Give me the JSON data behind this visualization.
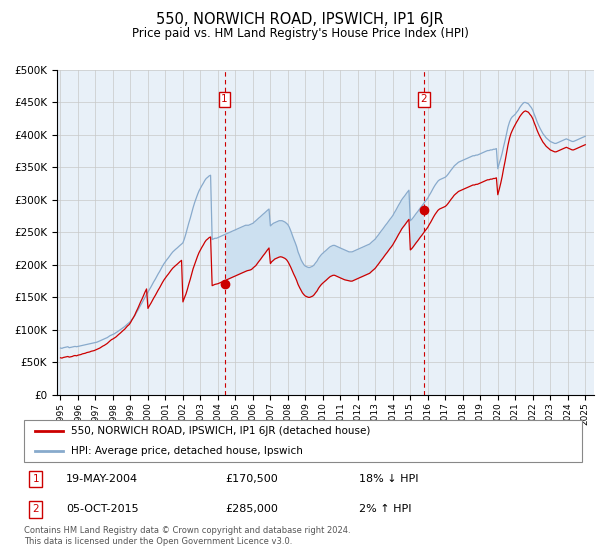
{
  "title": "550, NORWICH ROAD, IPSWICH, IP1 6JR",
  "subtitle": "Price paid vs. HM Land Registry's House Price Index (HPI)",
  "legend_line1": "550, NORWICH ROAD, IPSWICH, IP1 6JR (detached house)",
  "legend_line2": "HPI: Average price, detached house, Ipswich",
  "sale1_date": "19-MAY-2004",
  "sale1_price": "£170,500",
  "sale1_hpi": "18% ↓ HPI",
  "sale2_date": "05-OCT-2015",
  "sale2_price": "£285,000",
  "sale2_hpi": "2% ↑ HPI",
  "footer": "Contains HM Land Registry data © Crown copyright and database right 2024.\nThis data is licensed under the Open Government Licence v3.0.",
  "sale1_x": 2004.38,
  "sale1_y": 170500,
  "sale2_x": 2015.76,
  "sale2_y": 285000,
  "ylim": [
    0,
    500000
  ],
  "xlim": [
    1994.8,
    2025.5
  ],
  "red_color": "#cc0000",
  "blue_color": "#88aacc",
  "fill_color": "#cce0f0",
  "bg_color": "#e8f0f8",
  "hpi_data_x": [
    1995.0,
    1995.08,
    1995.17,
    1995.25,
    1995.33,
    1995.42,
    1995.5,
    1995.58,
    1995.67,
    1995.75,
    1995.83,
    1995.92,
    1996.0,
    1996.08,
    1996.17,
    1996.25,
    1996.33,
    1996.42,
    1996.5,
    1996.58,
    1996.67,
    1996.75,
    1996.83,
    1996.92,
    1997.0,
    1997.08,
    1997.17,
    1997.25,
    1997.33,
    1997.42,
    1997.5,
    1997.58,
    1997.67,
    1997.75,
    1997.83,
    1997.92,
    1998.0,
    1998.08,
    1998.17,
    1998.25,
    1998.33,
    1998.42,
    1998.5,
    1998.58,
    1998.67,
    1998.75,
    1998.83,
    1998.92,
    1999.0,
    1999.08,
    1999.17,
    1999.25,
    1999.33,
    1999.42,
    1999.5,
    1999.58,
    1999.67,
    1999.75,
    1999.83,
    1999.92,
    2000.0,
    2000.08,
    2000.17,
    2000.25,
    2000.33,
    2000.42,
    2000.5,
    2000.58,
    2000.67,
    2000.75,
    2000.83,
    2000.92,
    2001.0,
    2001.08,
    2001.17,
    2001.25,
    2001.33,
    2001.42,
    2001.5,
    2001.58,
    2001.67,
    2001.75,
    2001.83,
    2001.92,
    2002.0,
    2002.08,
    2002.17,
    2002.25,
    2002.33,
    2002.42,
    2002.5,
    2002.58,
    2002.67,
    2002.75,
    2002.83,
    2002.92,
    2003.0,
    2003.08,
    2003.17,
    2003.25,
    2003.33,
    2003.42,
    2003.5,
    2003.58,
    2003.67,
    2003.75,
    2003.83,
    2003.92,
    2004.0,
    2004.08,
    2004.17,
    2004.25,
    2004.33,
    2004.42,
    2004.5,
    2004.58,
    2004.67,
    2004.75,
    2004.83,
    2004.92,
    2005.0,
    2005.08,
    2005.17,
    2005.25,
    2005.33,
    2005.42,
    2005.5,
    2005.58,
    2005.67,
    2005.75,
    2005.83,
    2005.92,
    2006.0,
    2006.08,
    2006.17,
    2006.25,
    2006.33,
    2006.42,
    2006.5,
    2006.58,
    2006.67,
    2006.75,
    2006.83,
    2006.92,
    2007.0,
    2007.08,
    2007.17,
    2007.25,
    2007.33,
    2007.42,
    2007.5,
    2007.58,
    2007.67,
    2007.75,
    2007.83,
    2007.92,
    2008.0,
    2008.08,
    2008.17,
    2008.25,
    2008.33,
    2008.42,
    2008.5,
    2008.58,
    2008.67,
    2008.75,
    2008.83,
    2008.92,
    2009.0,
    2009.08,
    2009.17,
    2009.25,
    2009.33,
    2009.42,
    2009.5,
    2009.58,
    2009.67,
    2009.75,
    2009.83,
    2009.92,
    2010.0,
    2010.08,
    2010.17,
    2010.25,
    2010.33,
    2010.42,
    2010.5,
    2010.58,
    2010.67,
    2010.75,
    2010.83,
    2010.92,
    2011.0,
    2011.08,
    2011.17,
    2011.25,
    2011.33,
    2011.42,
    2011.5,
    2011.58,
    2011.67,
    2011.75,
    2011.83,
    2011.92,
    2012.0,
    2012.08,
    2012.17,
    2012.25,
    2012.33,
    2012.42,
    2012.5,
    2012.58,
    2012.67,
    2012.75,
    2012.83,
    2012.92,
    2013.0,
    2013.08,
    2013.17,
    2013.25,
    2013.33,
    2013.42,
    2013.5,
    2013.58,
    2013.67,
    2013.75,
    2013.83,
    2013.92,
    2014.0,
    2014.08,
    2014.17,
    2014.25,
    2014.33,
    2014.42,
    2014.5,
    2014.58,
    2014.67,
    2014.75,
    2014.83,
    2014.92,
    2015.0,
    2015.08,
    2015.17,
    2015.25,
    2015.33,
    2015.42,
    2015.5,
    2015.58,
    2015.67,
    2015.75,
    2015.83,
    2015.92,
    2016.0,
    2016.08,
    2016.17,
    2016.25,
    2016.33,
    2016.42,
    2016.5,
    2016.58,
    2016.67,
    2016.75,
    2016.83,
    2016.92,
    2017.0,
    2017.08,
    2017.17,
    2017.25,
    2017.33,
    2017.42,
    2017.5,
    2017.58,
    2017.67,
    2017.75,
    2017.83,
    2017.92,
    2018.0,
    2018.08,
    2018.17,
    2018.25,
    2018.33,
    2018.42,
    2018.5,
    2018.58,
    2018.67,
    2018.75,
    2018.83,
    2018.92,
    2019.0,
    2019.08,
    2019.17,
    2019.25,
    2019.33,
    2019.42,
    2019.5,
    2019.58,
    2019.67,
    2019.75,
    2019.83,
    2019.92,
    2020.0,
    2020.08,
    2020.17,
    2020.25,
    2020.33,
    2020.42,
    2020.5,
    2020.58,
    2020.67,
    2020.75,
    2020.83,
    2020.92,
    2021.0,
    2021.08,
    2021.17,
    2021.25,
    2021.33,
    2021.42,
    2021.5,
    2021.58,
    2021.67,
    2021.75,
    2021.83,
    2021.92,
    2022.0,
    2022.08,
    2022.17,
    2022.25,
    2022.33,
    2022.42,
    2022.5,
    2022.58,
    2022.67,
    2022.75,
    2022.83,
    2022.92,
    2023.0,
    2023.08,
    2023.17,
    2023.25,
    2023.33,
    2023.42,
    2023.5,
    2023.58,
    2023.67,
    2023.75,
    2023.83,
    2023.92,
    2024.0,
    2024.08,
    2024.17,
    2024.25,
    2024.33,
    2024.42,
    2024.5,
    2024.58,
    2024.67,
    2024.75,
    2024.83,
    2024.92,
    2025.0
  ],
  "hpi_data_y": [
    72000,
    71500,
    72500,
    73000,
    73500,
    74000,
    72500,
    73000,
    73500,
    74000,
    74500,
    74000,
    74500,
    75000,
    75500,
    76000,
    76500,
    77000,
    77500,
    78000,
    78500,
    79000,
    79500,
    80000,
    80500,
    81000,
    82000,
    83000,
    84000,
    85000,
    86000,
    87000,
    88000,
    89500,
    91000,
    92000,
    93000,
    94000,
    95500,
    97000,
    98500,
    100000,
    101500,
    103000,
    105000,
    107000,
    109000,
    111000,
    113000,
    116000,
    119000,
    122000,
    126000,
    130000,
    134000,
    138000,
    142000,
    146000,
    150000,
    155000,
    158000,
    162000,
    166000,
    170000,
    174000,
    178000,
    182000,
    186000,
    190000,
    194000,
    198000,
    202000,
    205000,
    208000,
    211000,
    214000,
    217000,
    220000,
    222000,
    224000,
    226000,
    228000,
    230000,
    232000,
    234000,
    240000,
    248000,
    256000,
    264000,
    272000,
    280000,
    288000,
    296000,
    302000,
    308000,
    314000,
    318000,
    322000,
    326000,
    330000,
    333000,
    335000,
    337000,
    338000,
    239000,
    240000,
    241000,
    241000,
    242000,
    243000,
    244000,
    245000,
    246000,
    247000,
    248000,
    249000,
    250000,
    251000,
    252000,
    253000,
    254000,
    255000,
    256000,
    257000,
    258000,
    259000,
    260000,
    261000,
    261000,
    261000,
    262000,
    263000,
    264000,
    266000,
    268000,
    270000,
    272000,
    274000,
    276000,
    278000,
    280000,
    282000,
    284000,
    286000,
    260000,
    262000,
    264000,
    265000,
    266000,
    267000,
    268000,
    268000,
    268000,
    267000,
    266000,
    264000,
    262000,
    258000,
    252000,
    246000,
    240000,
    234000,
    228000,
    220000,
    214000,
    208000,
    204000,
    200000,
    198000,
    197000,
    196000,
    196000,
    197000,
    198000,
    200000,
    203000,
    206000,
    210000,
    213000,
    216000,
    218000,
    220000,
    222000,
    224000,
    226000,
    228000,
    229000,
    230000,
    230000,
    229000,
    228000,
    227000,
    226000,
    225000,
    224000,
    223000,
    222000,
    221000,
    220000,
    220000,
    220000,
    221000,
    222000,
    223000,
    224000,
    225000,
    226000,
    227000,
    228000,
    229000,
    230000,
    231000,
    232000,
    234000,
    236000,
    238000,
    240000,
    243000,
    246000,
    249000,
    252000,
    255000,
    258000,
    261000,
    264000,
    267000,
    270000,
    273000,
    276000,
    280000,
    284000,
    288000,
    292000,
    296000,
    300000,
    303000,
    306000,
    309000,
    312000,
    315000,
    268000,
    270000,
    273000,
    276000,
    279000,
    282000,
    285000,
    288000,
    291000,
    294000,
    297000,
    300000,
    303000,
    307000,
    311000,
    315000,
    319000,
    323000,
    326000,
    329000,
    331000,
    332000,
    333000,
    334000,
    335000,
    337000,
    340000,
    343000,
    346000,
    349000,
    352000,
    354000,
    356000,
    358000,
    359000,
    360000,
    361000,
    362000,
    363000,
    364000,
    365000,
    366000,
    367000,
    368000,
    368000,
    369000,
    369000,
    370000,
    371000,
    372000,
    373000,
    374000,
    375000,
    376000,
    376000,
    377000,
    377000,
    378000,
    378000,
    379000,
    348000,
    356000,
    364000,
    372000,
    382000,
    392000,
    402000,
    412000,
    420000,
    425000,
    428000,
    430000,
    432000,
    435000,
    438000,
    442000,
    445000,
    448000,
    450000,
    450000,
    449000,
    448000,
    445000,
    442000,
    438000,
    432000,
    426000,
    420000,
    415000,
    410000,
    406000,
    402000,
    399000,
    396000,
    394000,
    392000,
    390000,
    389000,
    388000,
    387000,
    387000,
    388000,
    389000,
    390000,
    391000,
    392000,
    393000,
    394000,
    393000,
    392000,
    391000,
    390000,
    390000,
    391000,
    392000,
    393000,
    394000,
    395000,
    396000,
    397000,
    398000
  ],
  "price_data_x": [
    1995.0,
    1995.08,
    1995.17,
    1995.25,
    1995.33,
    1995.42,
    1995.5,
    1995.58,
    1995.67,
    1995.75,
    1995.83,
    1995.92,
    1996.0,
    1996.08,
    1996.17,
    1996.25,
    1996.33,
    1996.42,
    1996.5,
    1996.58,
    1996.67,
    1996.75,
    1996.83,
    1996.92,
    1997.0,
    1997.08,
    1997.17,
    1997.25,
    1997.33,
    1997.42,
    1997.5,
    1997.58,
    1997.67,
    1997.75,
    1997.83,
    1997.92,
    1998.0,
    1998.08,
    1998.17,
    1998.25,
    1998.33,
    1998.42,
    1998.5,
    1998.58,
    1998.67,
    1998.75,
    1998.83,
    1998.92,
    1999.0,
    1999.08,
    1999.17,
    1999.25,
    1999.33,
    1999.42,
    1999.5,
    1999.58,
    1999.67,
    1999.75,
    1999.83,
    1999.92,
    2000.0,
    2000.08,
    2000.17,
    2000.25,
    2000.33,
    2000.42,
    2000.5,
    2000.58,
    2000.67,
    2000.75,
    2000.83,
    2000.92,
    2001.0,
    2001.08,
    2001.17,
    2001.25,
    2001.33,
    2001.42,
    2001.5,
    2001.58,
    2001.67,
    2001.75,
    2001.83,
    2001.92,
    2002.0,
    2002.08,
    2002.17,
    2002.25,
    2002.33,
    2002.42,
    2002.5,
    2002.58,
    2002.67,
    2002.75,
    2002.83,
    2002.92,
    2003.0,
    2003.08,
    2003.17,
    2003.25,
    2003.33,
    2003.42,
    2003.5,
    2003.58,
    2003.67,
    2003.75,
    2003.83,
    2003.92,
    2004.0,
    2004.08,
    2004.17,
    2004.25,
    2004.33,
    2004.42,
    2004.5,
    2004.58,
    2004.67,
    2004.75,
    2004.83,
    2004.92,
    2005.0,
    2005.08,
    2005.17,
    2005.25,
    2005.33,
    2005.42,
    2005.5,
    2005.58,
    2005.67,
    2005.75,
    2005.83,
    2005.92,
    2006.0,
    2006.08,
    2006.17,
    2006.25,
    2006.33,
    2006.42,
    2006.5,
    2006.58,
    2006.67,
    2006.75,
    2006.83,
    2006.92,
    2007.0,
    2007.08,
    2007.17,
    2007.25,
    2007.33,
    2007.42,
    2007.5,
    2007.58,
    2007.67,
    2007.75,
    2007.83,
    2007.92,
    2008.0,
    2008.08,
    2008.17,
    2008.25,
    2008.33,
    2008.42,
    2008.5,
    2008.58,
    2008.67,
    2008.75,
    2008.83,
    2008.92,
    2009.0,
    2009.08,
    2009.17,
    2009.25,
    2009.33,
    2009.42,
    2009.5,
    2009.58,
    2009.67,
    2009.75,
    2009.83,
    2009.92,
    2010.0,
    2010.08,
    2010.17,
    2010.25,
    2010.33,
    2010.42,
    2010.5,
    2010.58,
    2010.67,
    2010.75,
    2010.83,
    2010.92,
    2011.0,
    2011.08,
    2011.17,
    2011.25,
    2011.33,
    2011.42,
    2011.5,
    2011.58,
    2011.67,
    2011.75,
    2011.83,
    2011.92,
    2012.0,
    2012.08,
    2012.17,
    2012.25,
    2012.33,
    2012.42,
    2012.5,
    2012.58,
    2012.67,
    2012.75,
    2012.83,
    2012.92,
    2013.0,
    2013.08,
    2013.17,
    2013.25,
    2013.33,
    2013.42,
    2013.5,
    2013.58,
    2013.67,
    2013.75,
    2013.83,
    2013.92,
    2014.0,
    2014.08,
    2014.17,
    2014.25,
    2014.33,
    2014.42,
    2014.5,
    2014.58,
    2014.67,
    2014.75,
    2014.83,
    2014.92,
    2015.0,
    2015.08,
    2015.17,
    2015.25,
    2015.33,
    2015.42,
    2015.5,
    2015.58,
    2015.67,
    2015.75,
    2015.83,
    2015.92,
    2016.0,
    2016.08,
    2016.17,
    2016.25,
    2016.33,
    2016.42,
    2016.5,
    2016.58,
    2016.67,
    2016.75,
    2016.83,
    2016.92,
    2017.0,
    2017.08,
    2017.17,
    2017.25,
    2017.33,
    2017.42,
    2017.5,
    2017.58,
    2017.67,
    2017.75,
    2017.83,
    2017.92,
    2018.0,
    2018.08,
    2018.17,
    2018.25,
    2018.33,
    2018.42,
    2018.5,
    2018.58,
    2018.67,
    2018.75,
    2018.83,
    2018.92,
    2019.0,
    2019.08,
    2019.17,
    2019.25,
    2019.33,
    2019.42,
    2019.5,
    2019.58,
    2019.67,
    2019.75,
    2019.83,
    2019.92,
    2020.0,
    2020.08,
    2020.17,
    2020.25,
    2020.33,
    2020.42,
    2020.5,
    2020.58,
    2020.67,
    2020.75,
    2020.83,
    2020.92,
    2021.0,
    2021.08,
    2021.17,
    2021.25,
    2021.33,
    2021.42,
    2021.5,
    2021.58,
    2021.67,
    2021.75,
    2021.83,
    2021.92,
    2022.0,
    2022.08,
    2022.17,
    2022.25,
    2022.33,
    2022.42,
    2022.5,
    2022.58,
    2022.67,
    2022.75,
    2022.83,
    2022.92,
    2023.0,
    2023.08,
    2023.17,
    2023.25,
    2023.33,
    2023.42,
    2023.5,
    2023.58,
    2023.67,
    2023.75,
    2023.83,
    2023.92,
    2024.0,
    2024.08,
    2024.17,
    2024.25,
    2024.33,
    2024.42,
    2024.5,
    2024.58,
    2024.67,
    2024.75,
    2024.83,
    2024.92,
    2025.0
  ],
  "price_data_y": [
    57000,
    56500,
    57500,
    58000,
    58500,
    59000,
    58000,
    58500,
    59000,
    60000,
    60500,
    60000,
    61000,
    61500,
    62000,
    63000,
    63500,
    64000,
    65000,
    65500,
    66000,
    67000,
    67500,
    68000,
    69000,
    70000,
    71000,
    72000,
    73500,
    75000,
    76000,
    77500,
    79000,
    81000,
    83000,
    85000,
    86000,
    87500,
    89000,
    91000,
    93000,
    95000,
    97000,
    99000,
    101000,
    103500,
    106000,
    108000,
    111000,
    115000,
    119000,
    123000,
    128000,
    133000,
    138000,
    143000,
    148000,
    153000,
    158000,
    163000,
    133000,
    137000,
    141000,
    145000,
    149000,
    153000,
    157000,
    161000,
    165000,
    169000,
    173000,
    177000,
    180000,
    183000,
    186000,
    189000,
    192000,
    195000,
    197000,
    199000,
    201000,
    203000,
    205000,
    207000,
    143000,
    149000,
    155000,
    162000,
    170000,
    178000,
    186000,
    194000,
    201000,
    207000,
    213000,
    219000,
    223000,
    227000,
    231000,
    235000,
    238000,
    240000,
    242000,
    243000,
    168000,
    169000,
    170000,
    170500,
    171000,
    172000,
    173000,
    174000,
    175000,
    176000,
    177000,
    178000,
    179000,
    180000,
    181000,
    182000,
    183000,
    184000,
    185000,
    186000,
    187000,
    188000,
    189000,
    190000,
    191000,
    191500,
    192000,
    193000,
    195000,
    197000,
    199000,
    202000,
    205000,
    208000,
    211000,
    214000,
    217000,
    220000,
    223000,
    226000,
    202000,
    205000,
    207000,
    209000,
    210000,
    211000,
    212000,
    212500,
    212000,
    211000,
    210000,
    208000,
    205000,
    201000,
    196000,
    191000,
    186000,
    181000,
    176000,
    170000,
    165000,
    161000,
    157000,
    154000,
    152000,
    151000,
    150000,
    150000,
    151000,
    152000,
    154000,
    157000,
    160000,
    164000,
    167000,
    170000,
    172000,
    174000,
    176000,
    178000,
    180000,
    182000,
    183000,
    184000,
    184000,
    183000,
    182000,
    181000,
    180000,
    179000,
    178000,
    177000,
    176500,
    176000,
    175500,
    175000,
    175000,
    176000,
    177000,
    178000,
    179000,
    180000,
    181000,
    182000,
    183000,
    184000,
    185000,
    186000,
    187000,
    189000,
    191000,
    193000,
    195000,
    198000,
    201000,
    204000,
    207000,
    210000,
    213000,
    216000,
    219000,
    222000,
    225000,
    228000,
    231000,
    235000,
    239000,
    243000,
    247000,
    251000,
    255000,
    258000,
    261000,
    264000,
    267000,
    270000,
    223000,
    225000,
    228000,
    231000,
    234000,
    237000,
    240000,
    243000,
    246000,
    249000,
    252000,
    255000,
    258000,
    262000,
    266000,
    270000,
    274000,
    278000,
    281000,
    284000,
    286000,
    287000,
    288000,
    289000,
    290000,
    292000,
    295000,
    298000,
    301000,
    304000,
    307000,
    309000,
    311000,
    313000,
    314000,
    315000,
    316000,
    317000,
    318000,
    319000,
    320000,
    321000,
    322000,
    323000,
    323000,
    324000,
    324000,
    325000,
    326000,
    327000,
    328000,
    329000,
    330000,
    331000,
    331000,
    332000,
    332000,
    333000,
    333000,
    334000,
    308000,
    316000,
    326000,
    336000,
    348000,
    360000,
    372000,
    384000,
    395000,
    402000,
    407000,
    412000,
    416000,
    420000,
    424000,
    428000,
    431000,
    434000,
    436000,
    437000,
    436000,
    435000,
    432000,
    429000,
    425000,
    419000,
    413000,
    407000,
    402000,
    397000,
    393000,
    389000,
    386000,
    383000,
    381000,
    379000,
    377000,
    376000,
    375000,
    374000,
    374000,
    375000,
    376000,
    377000,
    378000,
    379000,
    380000,
    381000,
    380000,
    379000,
    378000,
    377000,
    377000,
    378000,
    379000,
    380000,
    381000,
    382000,
    383000,
    384000,
    385000
  ]
}
